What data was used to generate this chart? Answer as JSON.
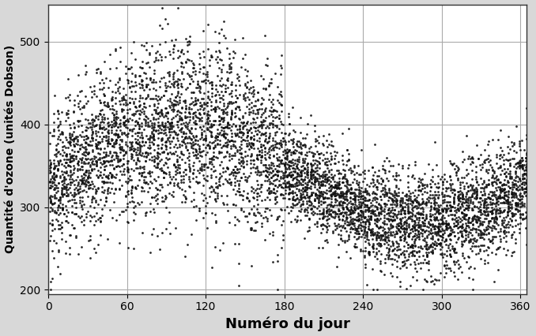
{
  "xlabel": "Numéro du jour",
  "ylabel": "Quantité d'ozone (unités Dobson)",
  "xlim": [
    0,
    365
  ],
  "ylim": [
    195,
    545
  ],
  "xticks": [
    0,
    60,
    120,
    180,
    240,
    300,
    360
  ],
  "yticks": [
    200,
    300,
    400,
    500
  ],
  "grid_color": "#aaaaaa",
  "bg_color": "#ffffff",
  "fig_color": "#d8d8d8",
  "dot_color": "#111111",
  "dot_size": 4.0,
  "seed": 42,
  "n_years": 20,
  "xlabel_fontsize": 13,
  "ylabel_fontsize": 10,
  "tick_fontsize": 10
}
